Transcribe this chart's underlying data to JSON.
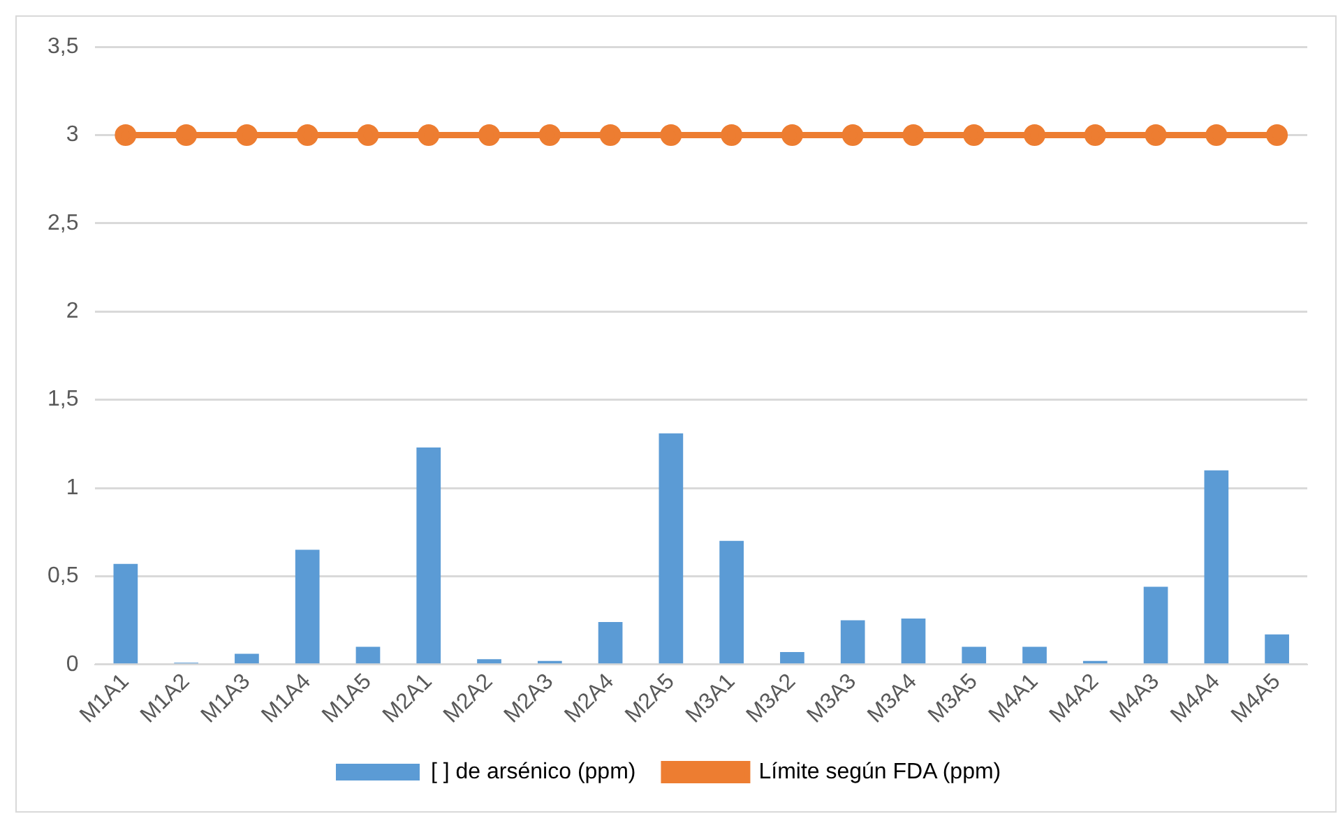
{
  "chart_data": {
    "type": "bar",
    "categories": [
      "M1A1",
      "M1A2",
      "M1A3",
      "M1A4",
      "M1A5",
      "M2A1",
      "M2A2",
      "M2A3",
      "M2A4",
      "M2A5",
      "M3A1",
      "M3A2",
      "M3A3",
      "M3A4",
      "M3A5",
      "M4A1",
      "M4A2",
      "M4A3",
      "M4A4",
      "M4A5"
    ],
    "series": [
      {
        "name": "[ ] de arsénico (ppm)",
        "color": "#5b9bd5",
        "values": [
          0.57,
          0.01,
          0.06,
          0.65,
          0.1,
          1.23,
          0.03,
          0.02,
          0.24,
          1.31,
          0.7,
          0.07,
          0.25,
          0.26,
          0.1,
          0.1,
          0.02,
          0.44,
          1.1,
          0.17
        ]
      },
      {
        "name": "Límite según FDA (ppm)",
        "type": "line",
        "color": "#ed7d31",
        "marker": "circle",
        "values": [
          3,
          3,
          3,
          3,
          3,
          3,
          3,
          3,
          3,
          3,
          3,
          3,
          3,
          3,
          3,
          3,
          3,
          3,
          3,
          3
        ]
      }
    ],
    "ylim": [
      0,
      3.5
    ],
    "yticks": [
      0,
      {
        "value": 0.5,
        "label": "0,5"
      },
      1,
      {
        "value": 1.5,
        "label": "1,5"
      },
      2,
      {
        "value": 2.5,
        "label": "2,5"
      },
      3,
      {
        "value": 3.5,
        "label": "3,5"
      }
    ],
    "grid": "y",
    "legend": "bottom"
  }
}
